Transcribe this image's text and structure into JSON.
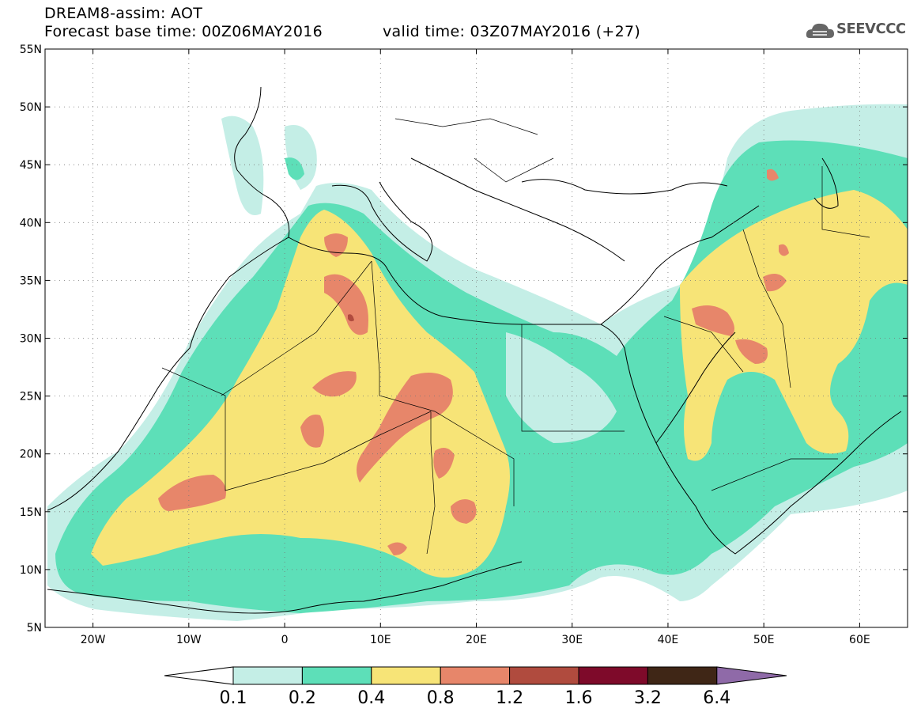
{
  "header": {
    "title": "DREAM8-assim: AOT",
    "base_time_label": "Forecast base time: 00Z06MAY2016",
    "valid_time_label": "valid time: 03Z07MAY2016 (+27)",
    "logo_text": "SEEVCCC"
  },
  "map": {
    "lat_ticks": [
      "55N",
      "50N",
      "45N",
      "40N",
      "35N",
      "30N",
      "25N",
      "20N",
      "15N",
      "10N",
      "5N"
    ],
    "lon_ticks": [
      "20W",
      "10W",
      "0",
      "10E",
      "20E",
      "30E",
      "40E",
      "50E",
      "60E"
    ],
    "lat_range": [
      5,
      55
    ],
    "lon_range": [
      -25,
      65
    ]
  },
  "colorbar": {
    "labels": [
      "0.1",
      "0.2",
      "0.4",
      "0.8",
      "1.2",
      "1.6",
      "3.2",
      "6.4"
    ],
    "colors": [
      "#c4eee6",
      "#5ddfb8",
      "#f7e477",
      "#e7866a",
      "#b04b3e",
      "#7e0a2a",
      "#3f2616"
    ],
    "over_color": "#8f6aa8",
    "under_color": "#ffffff"
  }
}
